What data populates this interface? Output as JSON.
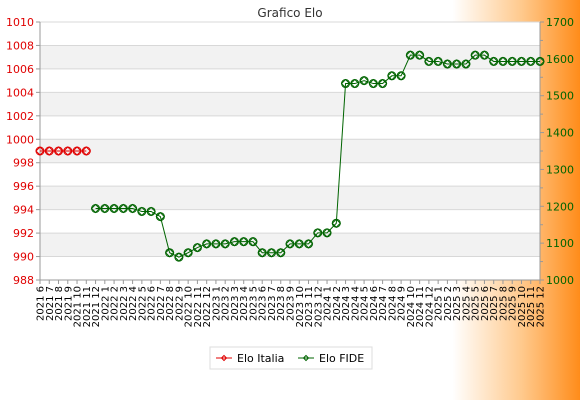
{
  "colors": {
    "italia": "#e00000",
    "fide": "#006400",
    "bg_left": "#ffffff",
    "bg_right": "#ff8c1a"
  },
  "chart_data": {
    "type": "line",
    "title": "Grafico Elo",
    "grid": true,
    "legend_position": "bottom",
    "categories": [
      "2021 6",
      "2021 7",
      "2021 8",
      "2021 9",
      "2021 10",
      "2021 11",
      "2021 12",
      "2022 1",
      "2022 2",
      "2022 3",
      "2022 4",
      "2022 5",
      "2022 6",
      "2022 7",
      "2022 8",
      "2022 9",
      "2022 10",
      "2022 11",
      "2022 12",
      "2023 1",
      "2023 2",
      "2023 3",
      "2023 4",
      "2023 5",
      "2023 6",
      "2023 7",
      "2023 8",
      "2023 9",
      "2023 10",
      "2023 11",
      "2023 12",
      "2024 1",
      "2024 2",
      "2024 3",
      "2024 4",
      "2024 5",
      "2024 6",
      "2024 7",
      "2024 8",
      "2024 9",
      "2024 10",
      "2024 11",
      "2024 12",
      "2025 1",
      "2025 2",
      "2025 3",
      "2025 4",
      "2025 5",
      "2025 6",
      "2025 7",
      "2025 8",
      "2025 9",
      "2025 10",
      "2025 11",
      "2025 12"
    ],
    "y_left": {
      "min": 988,
      "max": 1010,
      "ticks": [
        988,
        990,
        992,
        994,
        996,
        998,
        1000,
        1002,
        1004,
        1006,
        1008,
        1010
      ]
    },
    "y_right": {
      "min": 1000,
      "max": 1700,
      "ticks": [
        1000,
        1100,
        1200,
        1300,
        1400,
        1500,
        1600,
        1700
      ]
    },
    "series": [
      {
        "name": "Elo Italia",
        "axis": "left",
        "values": [
          999,
          999,
          999,
          999,
          999,
          999,
          null,
          null,
          null,
          null,
          null,
          null,
          null,
          null,
          null,
          null,
          null,
          null,
          null,
          null,
          null,
          null,
          null,
          null,
          null,
          null,
          null,
          null,
          null,
          null,
          null,
          null,
          null,
          null,
          null,
          null,
          null,
          null,
          null,
          null,
          null,
          null,
          null,
          null,
          null,
          null,
          null,
          null,
          null,
          null,
          null,
          null,
          null,
          null,
          null
        ]
      },
      {
        "name": "Elo FIDE",
        "axis": "right",
        "values": [
          null,
          null,
          null,
          null,
          null,
          null,
          1194,
          1194,
          1194,
          1194,
          1194,
          1186,
          1186,
          1172,
          1074,
          1062,
          1074,
          1088,
          1098,
          1098,
          1098,
          1104,
          1104,
          1104,
          1074,
          1074,
          1074,
          1098,
          1098,
          1098,
          1128,
          1128,
          1154,
          1533,
          1533,
          1541,
          1533,
          1533,
          1554,
          1554,
          1610,
          1610,
          1593,
          1593,
          1586,
          1586,
          1586,
          1610,
          1610,
          1593,
          1593,
          1593,
          1593,
          1593,
          1593
        ]
      }
    ]
  }
}
